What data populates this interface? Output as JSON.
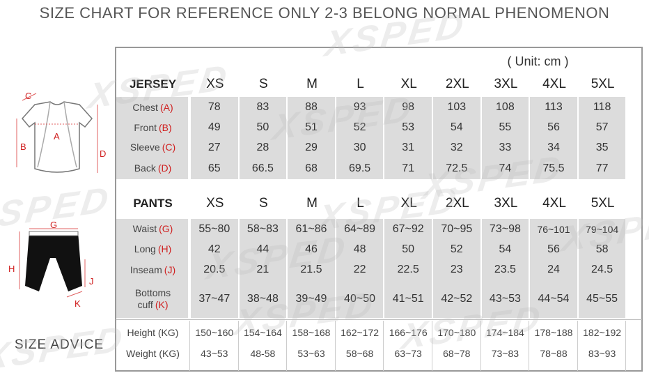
{
  "title": "SIZE CHART FOR REFERENCE ONLY 2-3 BELONG NORMAL PHENOMENON",
  "watermark": "XSPED",
  "unit": "( Unit: cm )",
  "diagrams": {
    "jersey_labels": [
      "C",
      "A",
      "B",
      "D"
    ],
    "pants_labels": [
      "G",
      "H",
      "J",
      "K"
    ]
  },
  "jersey": {
    "header": [
      "JERSEY",
      "XS",
      "S",
      "M",
      "L",
      "XL",
      "2XL",
      "3XL",
      "4XL",
      "5XL"
    ],
    "rows": [
      {
        "label": "Chest",
        "key": "(A)",
        "values": [
          78,
          83,
          88,
          93,
          98,
          103,
          108,
          113,
          118
        ]
      },
      {
        "label": "Front",
        "key": "(B)",
        "values": [
          49,
          50,
          51,
          52,
          53,
          54,
          55,
          56,
          57
        ]
      },
      {
        "label": "Sleeve",
        "key": "(C)",
        "values": [
          27,
          28,
          29,
          30,
          31,
          32,
          33,
          34,
          35
        ]
      },
      {
        "label": "Back",
        "key": "(D)",
        "values": [
          65,
          66.5,
          68,
          69.5,
          71,
          72.5,
          74,
          75.5,
          77
        ]
      }
    ]
  },
  "pants": {
    "header": [
      "PANTS",
      "XS",
      "S",
      "M",
      "L",
      "XL",
      "2XL",
      "3XL",
      "4XL",
      "5XL"
    ],
    "rows": [
      {
        "label": "Waist",
        "key": "(G)",
        "values": [
          "55~80",
          "58~83",
          "61~86",
          "64~89",
          "67~92",
          "70~95",
          "73~98",
          "76~101",
          "79~104"
        ]
      },
      {
        "label": "Long",
        "key": "(H)",
        "values": [
          42,
          44,
          46,
          48,
          50,
          52,
          54,
          56,
          58
        ]
      },
      {
        "label": "Inseam",
        "key": "(J)",
        "values": [
          20.5,
          21,
          21.5,
          22,
          22.5,
          23,
          23.5,
          24,
          24.5
        ]
      },
      {
        "label": "Bottoms cuff",
        "key": "(K)",
        "values": [
          "37~47",
          "38~48",
          "39~49",
          "40~50",
          "41~51",
          "42~52",
          "43~53",
          "44~54",
          "45~55"
        ]
      }
    ]
  },
  "advice": {
    "title": "SIZE ADVICE",
    "rows": [
      {
        "label": "Height (KG)",
        "values": [
          "150~160",
          "154~164",
          "158~168",
          "162~172",
          "166~176",
          "170~180",
          "174~184",
          "178~188",
          "182~192"
        ]
      },
      {
        "label": "Weight (KG)",
        "values": [
          "43~53",
          "48-58",
          "53~63",
          "58~68",
          "63~73",
          "68~78",
          "73~83",
          "78~88",
          "83~93"
        ]
      }
    ]
  }
}
